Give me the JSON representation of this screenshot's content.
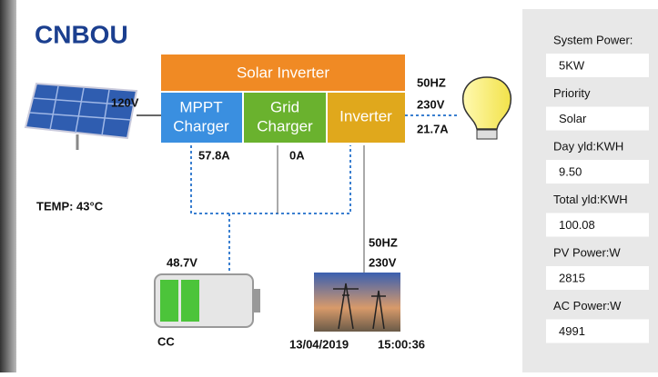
{
  "logo": "CNBOU",
  "inverter": {
    "title": "Solar Inverter",
    "blocks": [
      {
        "line1": "MPPT",
        "line2": "Charger"
      },
      {
        "line1": "Grid",
        "line2": "Charger"
      },
      {
        "line1": "Inverter"
      }
    ]
  },
  "pv_voltage": "120V",
  "output": {
    "frequency": "50HZ",
    "voltage": "230V",
    "current": "21.7A"
  },
  "mppt_current": "57.8A",
  "grid_current": "0A",
  "temperature": "TEMP: 43°C",
  "battery": {
    "voltage": "48.7V",
    "mode": "CC"
  },
  "grid": {
    "frequency": "50HZ",
    "voltage": "230V"
  },
  "date": "13/04/2019",
  "time": "15:00:36",
  "sidebar": [
    {
      "label": "System Power:",
      "value": "5KW"
    },
    {
      "label": "Priority",
      "value": "Solar"
    },
    {
      "label": "Day yld:KWH",
      "value": "9.50"
    },
    {
      "label": "Total yld:KWH",
      "value": "100.08"
    },
    {
      "label": "PV Power:W",
      "value": "2815"
    },
    {
      "label": "AC Power:W",
      "value": "4991"
    }
  ]
}
